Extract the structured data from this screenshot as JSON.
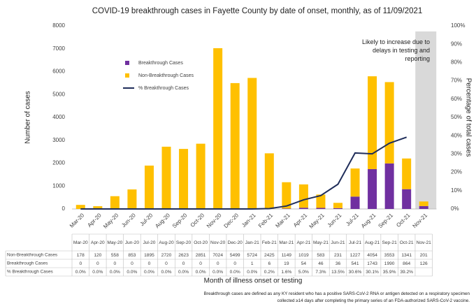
{
  "chart_data": {
    "type": "bar",
    "title": "COVID-19 breakthrough cases in Fayette County by date of onset, monthly, as of 11/09/2021",
    "x_label": "Month of illness onset or testing",
    "y_label": "Number of cases",
    "y2_label": "Percentage of total cases",
    "annotation": "Likely to increase due to delays in testing and reporting",
    "footnote": "Breakthrough cases are defined as any KY resident who has a positive SARS-CoV-2 RNA or antigen detected on a respiratory specimen collected ≥14 days after completing the primary series of an FDA-authorized SARS-CoV-2 vaccine.",
    "categories": [
      "Mar-20",
      "Apr-20",
      "May-20",
      "Jun-20",
      "Jul-20",
      "Aug-20",
      "Sep-20",
      "Oct-20",
      "Nov-20",
      "Dec-20",
      "Jan-21",
      "Feb-21",
      "Mar-21",
      "Apr-21",
      "May-21",
      "Jun-21",
      "Jul-21",
      "Aug-21",
      "Sep-21",
      "Oct-21",
      "Nov-21"
    ],
    "series": [
      {
        "name": "Non-Breakthrough Cases",
        "color": "#ffc000",
        "values": [
          178,
          120,
          558,
          853,
          1895,
          2720,
          2623,
          2851,
          7024,
          5499,
          5724,
          2425,
          1149,
          1019,
          583,
          231,
          1227,
          4054,
          3553,
          1341,
          201
        ]
      },
      {
        "name": "Breakthrough Cases",
        "color": "#7030a0",
        "values": [
          0,
          0,
          0,
          0,
          0,
          0,
          0,
          0,
          0,
          0,
          1,
          6,
          19,
          54,
          46,
          36,
          541,
          1743,
          1990,
          864,
          126
        ]
      },
      {
        "name": "% Breakthrough Cases",
        "color": "#1f2d5a",
        "axis": "y2",
        "values": [
          0.0,
          0.0,
          0.0,
          0.0,
          0.0,
          0.0,
          0.0,
          0.0,
          0.0,
          0.0,
          0.0,
          0.2,
          1.6,
          5.0,
          7.3,
          13.5,
          30.6,
          30.1,
          35.9,
          39.2,
          null
        ],
        "value_labels": [
          "0.0%",
          "0.0%",
          "0.0%",
          "0.0%",
          "0.0%",
          "0.0%",
          "0.0%",
          "0.0%",
          "0.0%",
          "0.0%",
          "0.0%",
          "0.2%",
          "1.6%",
          "5.0%",
          "7.3%",
          "13.5%",
          "30.6%",
          "30.1%",
          "35.9%",
          "39.2%",
          null
        ]
      }
    ],
    "ylim": [
      0,
      8000
    ],
    "yticks": [
      0,
      1000,
      2000,
      3000,
      4000,
      5000,
      6000,
      7000,
      8000
    ],
    "y2lim": [
      0,
      100
    ],
    "y2ticks": [
      {
        "value": 0,
        "label": "0%"
      },
      {
        "value": 10,
        "label": "10%"
      },
      {
        "value": 20,
        "label": "20%"
      },
      {
        "value": 30,
        "label": "30%"
      },
      {
        "value": 40,
        "label": "40%"
      },
      {
        "value": 50,
        "label": "50%"
      },
      {
        "value": 60,
        "label": "60%"
      },
      {
        "value": 70,
        "label": "70%"
      },
      {
        "value": 80,
        "label": "80%"
      },
      {
        "value": 90,
        "label": "90%"
      },
      {
        "value": 100,
        "label": "100%"
      }
    ]
  }
}
